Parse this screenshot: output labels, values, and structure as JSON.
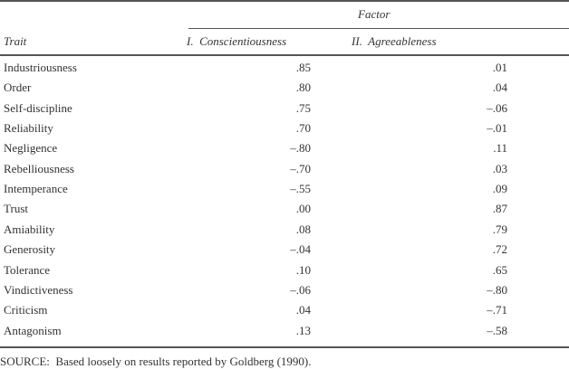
{
  "header": {
    "spanner": "Factor",
    "trait_col": "Trait",
    "col1": "I.  Conscientiousness",
    "col2": "II.  Agreeableness"
  },
  "rows": [
    {
      "trait": "Industriousness",
      "c": ".85",
      "a": ".01"
    },
    {
      "trait": "Order",
      "c": ".80",
      "a": ".04"
    },
    {
      "trait": "Self-discipline",
      "c": ".75",
      "a": "–.06"
    },
    {
      "trait": "Reliability",
      "c": ".70",
      "a": "–.01"
    },
    {
      "trait": "Negligence",
      "c": "–.80",
      "a": ".11"
    },
    {
      "trait": "Rebelliousness",
      "c": "–.70",
      "a": ".03"
    },
    {
      "trait": "Intemperance",
      "c": "–.55",
      "a": ".09"
    },
    {
      "trait": "Trust",
      "c": ".00",
      "a": ".87"
    },
    {
      "trait": "Amiability",
      "c": ".08",
      "a": ".79"
    },
    {
      "trait": "Generosity",
      "c": "–.04",
      "a": ".72"
    },
    {
      "trait": "Tolerance",
      "c": ".10",
      "a": ".65"
    },
    {
      "trait": "Vindictiveness",
      "c": "–.06",
      "a": "–.80"
    },
    {
      "trait": "Criticism",
      "c": ".04",
      "a": "–.71"
    },
    {
      "trait": "Antagonism",
      "c": ".13",
      "a": "–.58"
    }
  ],
  "source": "SOURCE:  Based loosely on results reported by Goldberg (1990)."
}
